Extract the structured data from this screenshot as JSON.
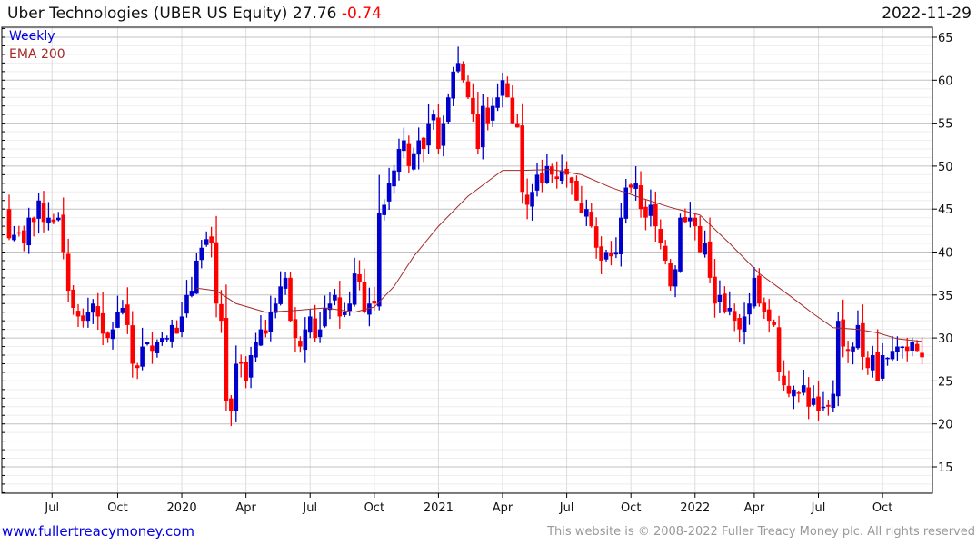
{
  "header": {
    "title": "Uber Technologies (UBER US Equity) 27.76",
    "change": "-0.74",
    "date": "2022-11-29"
  },
  "legend": {
    "weekly": "Weekly",
    "ema": "EMA 200"
  },
  "footer": {
    "site": "www.fullertreacymoney.com",
    "copyright": "This website is © 2008-2022 Fuller Treacy Money plc. All rights reserved"
  },
  "colors": {
    "up": "#0000cc",
    "down": "#ff0000",
    "ema": "#a52a2a"
  },
  "chart_data": {
    "type": "candlestick",
    "title": "Uber Technologies (UBER US Equity) 27.76 -0.74",
    "ylim": [
      12,
      66
    ],
    "yticks": [
      15,
      20,
      25,
      30,
      35,
      40,
      45,
      50,
      55,
      60,
      65
    ],
    "xticks": [
      {
        "label": "Jul",
        "week": 8.7
      },
      {
        "label": "Oct",
        "week": 22
      },
      {
        "label": "2020",
        "week": 35
      },
      {
        "label": "Apr",
        "week": 48
      },
      {
        "label": "Jul",
        "week": 61
      },
      {
        "label": "Oct",
        "week": 74
      },
      {
        "label": "2021",
        "week": 87
      },
      {
        "label": "Apr",
        "week": 100
      },
      {
        "label": "Jul",
        "week": 113
      },
      {
        "label": "Oct",
        "week": 126
      },
      {
        "label": "2022",
        "week": 139
      },
      {
        "label": "Apr",
        "week": 151
      },
      {
        "label": "Jul",
        "week": 164
      },
      {
        "label": "Oct",
        "week": 177
      }
    ],
    "first_open": 45,
    "close": [
      41.6,
      42,
      42.3,
      41,
      44,
      43.5,
      46,
      43.5,
      44,
      43.5,
      44,
      40,
      35.5,
      33.5,
      32.5,
      32,
      33,
      34,
      32.5,
      30.5,
      30,
      31,
      33,
      33.5,
      31.5,
      27,
      26.5,
      29,
      29.5,
      28.5,
      29.5,
      30,
      30,
      31.5,
      30.5,
      32.5,
      35,
      35.5,
      39,
      40.5,
      41.5,
      41,
      34,
      32,
      22.7,
      21.5,
      27,
      27,
      25,
      28,
      29.5,
      31,
      30.5,
      33,
      34,
      36,
      37,
      32,
      30,
      29,
      31,
      32.5,
      30,
      31,
      33.5,
      34,
      35,
      32.5,
      33,
      34,
      37.5,
      36.5,
      33,
      34,
      34,
      44.5,
      45.5,
      48,
      49.5,
      52,
      53,
      50,
      51.5,
      53,
      52,
      55,
      56,
      52,
      55,
      58,
      61,
      62,
      60,
      58,
      56,
      52,
      57,
      55,
      57,
      58,
      60,
      58,
      55,
      54.5,
      47,
      45.5,
      47,
      49,
      48,
      50,
      49,
      48.5,
      49.5,
      49,
      48,
      46,
      44.5,
      45,
      43,
      40.5,
      39,
      40,
      39.5,
      40,
      44,
      47.5,
      47.5,
      48,
      45,
      44,
      45.5,
      43,
      41,
      39,
      36,
      38,
      44,
      43.5,
      44,
      43,
      40,
      41,
      37,
      34,
      35,
      33,
      33.5,
      32,
      31,
      32.5,
      34,
      37,
      34,
      33,
      32,
      31.5,
      26,
      24.5,
      23.5,
      24,
      23.5,
      24.5,
      22,
      23,
      21.5,
      22,
      22,
      23.5,
      32,
      29,
      28.5,
      29,
      31.5,
      27.8,
      26.5,
      28,
      25,
      28,
      27.7,
      28.5,
      29,
      29,
      28.5,
      29.5,
      28.5,
      27.76
    ],
    "ema200": [
      [
        38,
        35.8
      ],
      [
        42,
        35.5
      ],
      [
        46,
        34
      ],
      [
        52,
        33
      ],
      [
        58,
        33.2
      ],
      [
        64,
        33.5
      ],
      [
        70,
        33
      ],
      [
        74,
        33.6
      ],
      [
        78,
        36
      ],
      [
        82,
        39.5
      ],
      [
        87,
        43
      ],
      [
        93,
        46.5
      ],
      [
        100,
        49.5
      ],
      [
        104,
        49.5
      ],
      [
        110,
        49.6
      ],
      [
        116,
        49
      ],
      [
        122,
        47.5
      ],
      [
        128,
        46.3
      ],
      [
        134,
        45.2
      ],
      [
        140,
        44.3
      ],
      [
        146,
        41
      ],
      [
        152,
        37.5
      ],
      [
        158,
        35
      ],
      [
        163,
        32.8
      ],
      [
        167,
        31.2
      ],
      [
        172,
        31
      ],
      [
        176,
        30.6
      ],
      [
        180,
        29.9
      ],
      [
        185,
        29.6
      ]
    ]
  }
}
